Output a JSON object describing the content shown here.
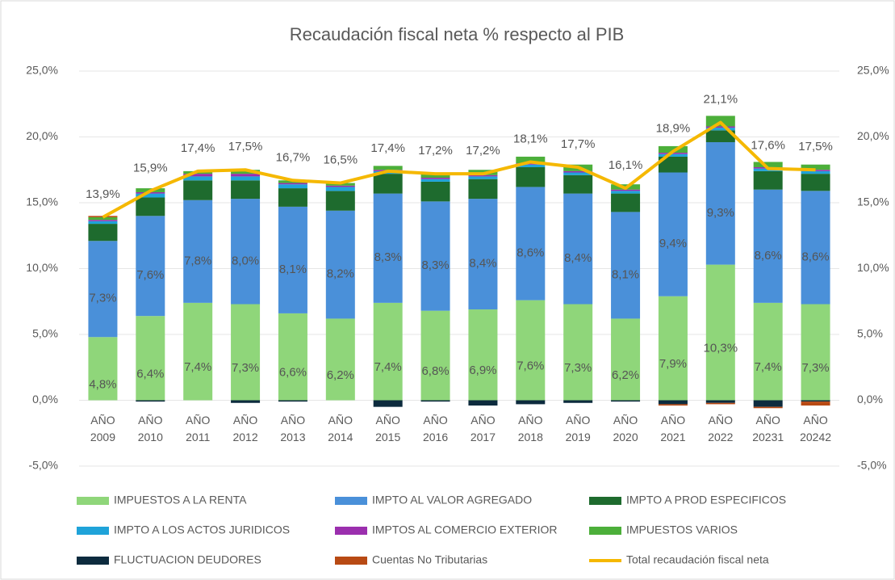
{
  "chart_data": {
    "type": "bar",
    "title": "Recaudación  fiscal neta % respecto al PIB",
    "categories": [
      "AÑO 2009",
      "AÑO 2010",
      "AÑO 2011",
      "AÑO 2012",
      "AÑO 2013",
      "AÑO 2014",
      "AÑO 2015",
      "AÑO 2016",
      "AÑO 2017",
      "AÑO 2018",
      "AÑO 2019",
      "AÑO 2020",
      "AÑO 2021",
      "AÑO 2022",
      "AÑO 20231",
      "AÑO 20242"
    ],
    "ylim": [
      -5,
      25
    ],
    "yticks": [
      {
        "value": -5,
        "label": "-5,0%"
      },
      {
        "value": 0,
        "label": "0,0%"
      },
      {
        "value": 5,
        "label": "5,0%"
      },
      {
        "value": 10,
        "label": "10,0%"
      },
      {
        "value": 15,
        "label": "15,0%"
      },
      {
        "value": 20,
        "label": "20,0%"
      },
      {
        "value": 25,
        "label": "25,0%"
      }
    ],
    "y2lim": [
      -5,
      25
    ],
    "y2ticks": [
      {
        "value": -5,
        "label": "-5,0%"
      },
      {
        "value": 0,
        "label": "0,0%"
      },
      {
        "value": 5,
        "label": "5,0%"
      },
      {
        "value": 10,
        "label": "10,0%"
      },
      {
        "value": 15,
        "label": "15,0%"
      },
      {
        "value": 20,
        "label": "20,0%"
      },
      {
        "value": 25,
        "label": "25,0%"
      }
    ],
    "stacked": true,
    "series": [
      {
        "name": "IMPUESTOS A LA RENTA",
        "color": "#8fd67a",
        "values": [
          4.8,
          6.4,
          7.4,
          7.3,
          6.6,
          6.2,
          7.4,
          6.8,
          6.9,
          7.6,
          7.3,
          6.2,
          7.9,
          10.3,
          7.4,
          7.3
        ],
        "value_labels": [
          "4,8%",
          "6,4%",
          "7,4%",
          "7,3%",
          "6,6%",
          "6,2%",
          "7,4%",
          "6,8%",
          "6,9%",
          "7,6%",
          "7,3%",
          "6,2%",
          "7,9%",
          "10,3%",
          "7,4%",
          "7,3%"
        ]
      },
      {
        "name": "IMPTO AL VALOR AGREGADO",
        "color": "#4a90d9",
        "values": [
          7.3,
          7.6,
          7.8,
          8.0,
          8.1,
          8.2,
          8.3,
          8.3,
          8.4,
          8.6,
          8.4,
          8.1,
          9.4,
          9.3,
          8.6,
          8.6
        ],
        "value_labels": [
          "7,3%",
          "7,6%",
          "7,8%",
          "8,0%",
          "8,1%",
          "8,2%",
          "8,3%",
          "8,3%",
          "8,4%",
          "8,6%",
          "8,4%",
          "8,1%",
          "9,4%",
          "9,3%",
          "8,6%",
          "8,6%"
        ]
      },
      {
        "name": "IMPTO  A PROD ESPECIFICOS",
        "color": "#1e6b2e",
        "values": [
          1.3,
          1.4,
          1.5,
          1.4,
          1.4,
          1.5,
          1.5,
          1.5,
          1.5,
          1.5,
          1.4,
          1.4,
          1.2,
          0.9,
          1.4,
          1.3
        ]
      },
      {
        "name": "IMPTO A LOS ACTOS JURIDICOS",
        "color": "#1fa3d9",
        "values": [
          0.2,
          0.3,
          0.3,
          0.3,
          0.3,
          0.3,
          0.2,
          0.2,
          0.2,
          0.2,
          0.2,
          0.2,
          0.2,
          0.2,
          0.2,
          0.2
        ]
      },
      {
        "name": "IMPTOS AL COMERCIO EXTERIOR",
        "color": "#9b2fae",
        "values": [
          0.1,
          0.1,
          0.2,
          0.2,
          0.1,
          0.1,
          0.1,
          0.1,
          0.1,
          0.1,
          0.1,
          0.1,
          0.1,
          0.1,
          0.1,
          0.1
        ]
      },
      {
        "name": "IMPUESTOS VARIOS",
        "color": "#4caf3a",
        "values": [
          0.2,
          0.3,
          0.2,
          0.3,
          0.2,
          0.2,
          0.3,
          0.3,
          0.4,
          0.5,
          0.5,
          0.4,
          0.5,
          0.8,
          0.4,
          0.4
        ]
      },
      {
        "name": "FLUCTUACION DEUDORES",
        "color": "#0d2b3e",
        "values": [
          0,
          -0.1,
          0,
          -0.2,
          -0.1,
          0,
          -0.5,
          -0.1,
          -0.4,
          -0.3,
          -0.2,
          -0.1,
          -0.3,
          -0.2,
          -0.5,
          -0.1
        ]
      },
      {
        "name": "Cuentas No Tributarias",
        "color": "#b84a14",
        "values": [
          0.1,
          0,
          0,
          0,
          0,
          0,
          0,
          0,
          0,
          0,
          0,
          0,
          -0.1,
          -0.1,
          -0.1,
          -0.3
        ]
      },
      {
        "name": "Total recaudación fiscal neta",
        "color": "#f5b800",
        "type": "line",
        "axis": "y2",
        "values": [
          13.9,
          15.9,
          17.4,
          17.5,
          16.7,
          16.5,
          17.4,
          17.2,
          17.2,
          18.1,
          17.7,
          16.1,
          18.9,
          21.1,
          17.6,
          17.5
        ],
        "value_labels": [
          "13,9%",
          "15,9%",
          "17,4%",
          "17,5%",
          "16,7%",
          "16,5%",
          "17,4%",
          "17,2%",
          "17,2%",
          "18,1%",
          "17,7%",
          "16,1%",
          "18,9%",
          "21,1%",
          "17,6%",
          "17,5%"
        ]
      }
    ],
    "legend": "bottom"
  }
}
